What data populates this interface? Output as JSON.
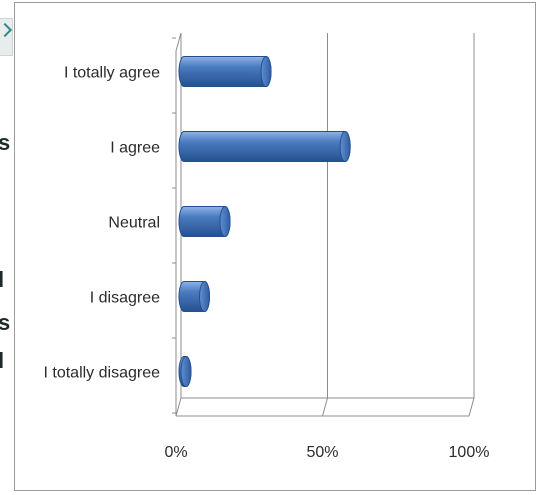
{
  "left_strip": {
    "chars": [
      "s",
      "l",
      "s",
      "l"
    ]
  },
  "chart_data": {
    "type": "bar",
    "orientation": "horizontal",
    "style": "3d-cylinder",
    "categories": [
      "I totally agree",
      "I agree",
      "Neutral",
      "I disagree",
      "I totally disagree"
    ],
    "values": [
      28,
      55,
      14,
      7,
      0.5
    ],
    "xlim": [
      0,
      100
    ],
    "xticks": [
      0,
      50,
      100
    ],
    "xtick_labels": [
      "0%",
      "50%",
      "100%"
    ],
    "grid": true,
    "legend": "none",
    "colors": {
      "bar": "#4a7bbf",
      "bar_light": "#8fb3e6",
      "bar_dark": "#24508f",
      "grid": "#8c8c8c"
    }
  }
}
